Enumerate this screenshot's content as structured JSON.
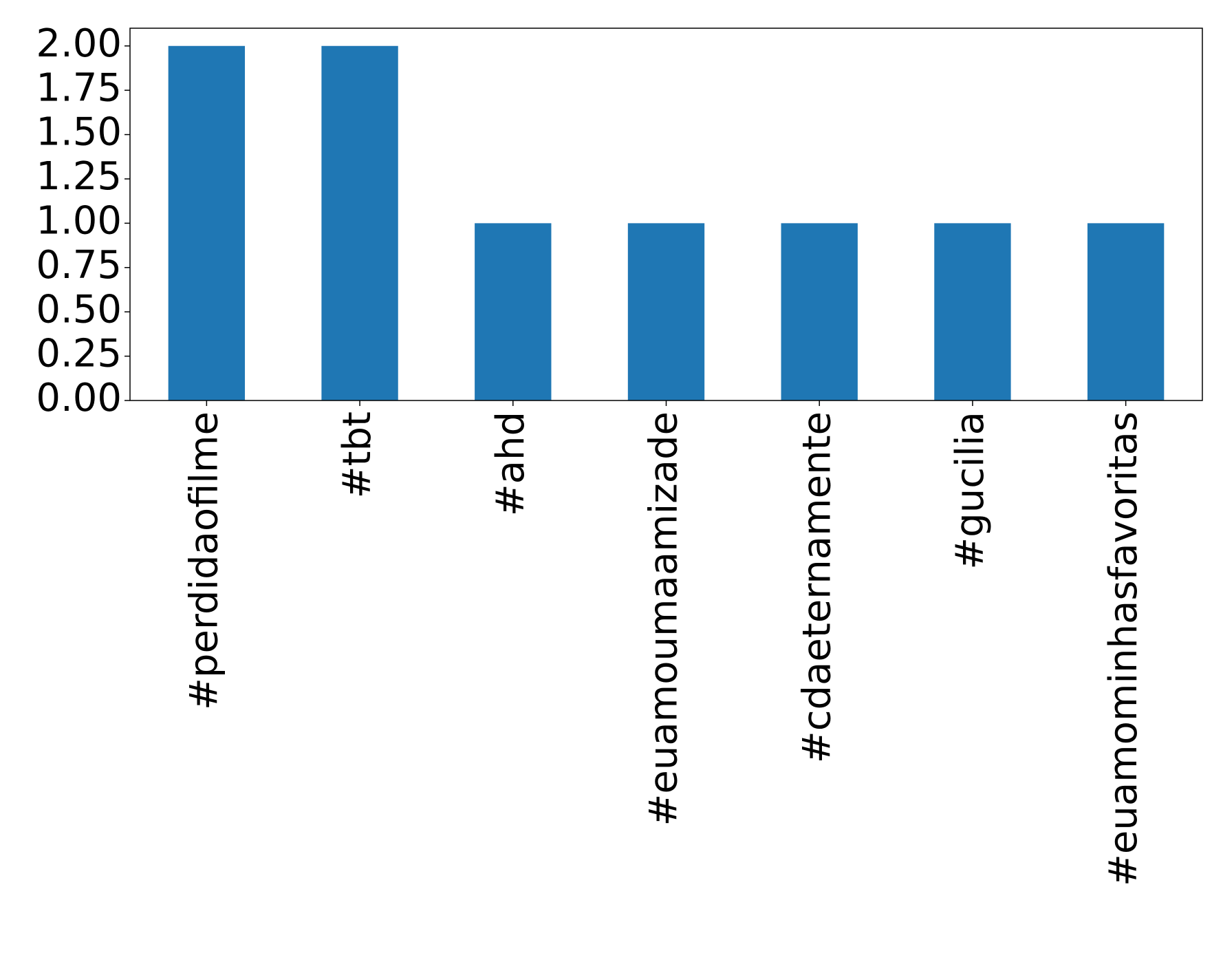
{
  "chart_data": {
    "type": "bar",
    "categories": [
      "#perdidaofilme",
      "#tbt",
      "#ahd",
      "#euamoumaamizade",
      "#cdaeternamente",
      "#gucilia",
      "#euamominhasfavoritas"
    ],
    "values": [
      2,
      2,
      1,
      1,
      1,
      1,
      1
    ],
    "color": "#1f77b4",
    "ylim": [
      0,
      2.1
    ],
    "yticks": [
      {
        "value": 0,
        "label": "0.00"
      },
      {
        "value": 0.25,
        "label": "0.25"
      },
      {
        "value": 0.5,
        "label": "0.50"
      },
      {
        "value": 0.75,
        "label": "0.75"
      },
      {
        "value": 1,
        "label": "1.00"
      },
      {
        "value": 1.25,
        "label": "1.25"
      },
      {
        "value": 1.5,
        "label": "1.50"
      },
      {
        "value": 1.75,
        "label": "1.75"
      },
      {
        "value": 2,
        "label": "2.00"
      }
    ],
    "grid": false
  }
}
